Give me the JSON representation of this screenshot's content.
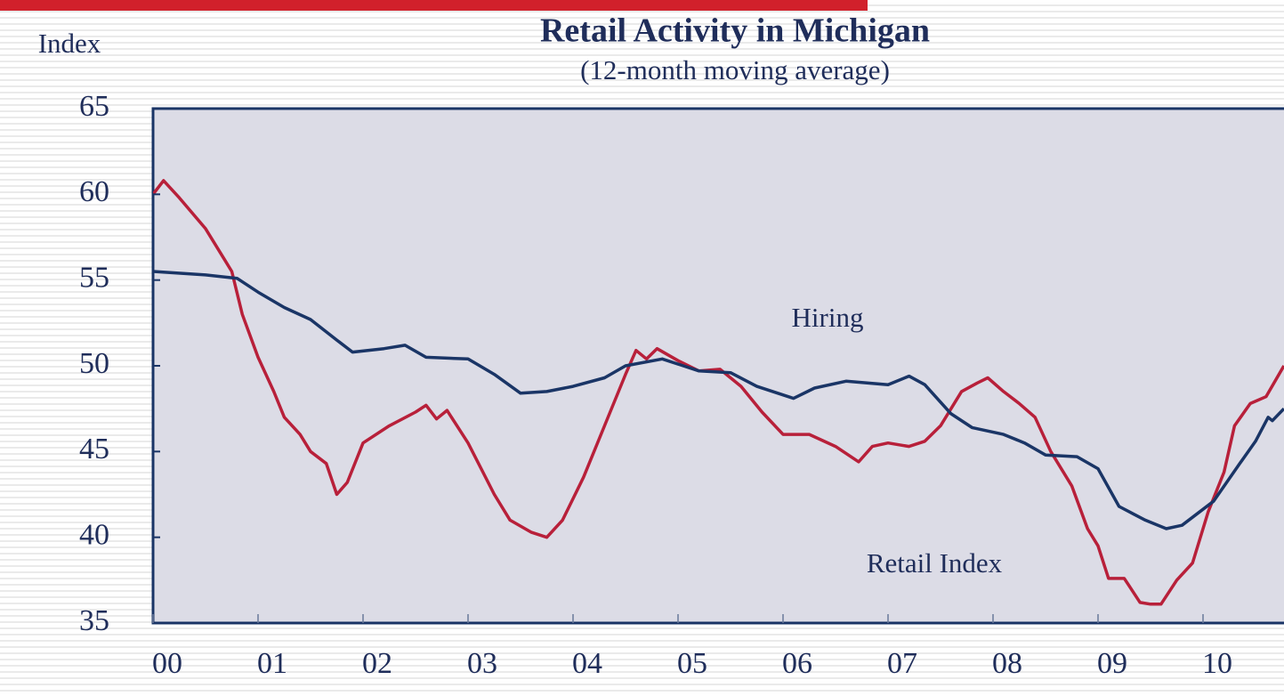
{
  "chart_data": {
    "type": "line",
    "title": "Retail Activity in Michigan",
    "subtitle": "(12-month moving average)",
    "y_label": "Index",
    "ylim": [
      35,
      65
    ],
    "yticks": [
      35,
      40,
      45,
      50,
      55,
      60,
      65
    ],
    "xlim": [
      2000,
      2010.77
    ],
    "xticks": [
      {
        "value": 2000,
        "label": "00"
      },
      {
        "value": 2001,
        "label": "01"
      },
      {
        "value": 2002,
        "label": "02"
      },
      {
        "value": 2003,
        "label": "03"
      },
      {
        "value": 2004,
        "label": "04"
      },
      {
        "value": 2005,
        "label": "05"
      },
      {
        "value": 2006,
        "label": "06"
      },
      {
        "value": 2007,
        "label": "07"
      },
      {
        "value": 2008,
        "label": "08"
      },
      {
        "value": 2009,
        "label": "09"
      },
      {
        "value": 2010,
        "label": "10"
      }
    ],
    "annotations": [
      "Hiring",
      "Retail Index"
    ],
    "series": [
      {
        "name": "Retail Index",
        "color": "#b8203a",
        "x": [
          2000.0,
          2000.1,
          2000.25,
          2000.5,
          2000.75,
          2000.85,
          2001.0,
          2001.15,
          2001.25,
          2001.4,
          2001.5,
          2001.65,
          2001.75,
          2001.85,
          2002.0,
          2002.25,
          2002.5,
          2002.6,
          2002.7,
          2002.8,
          2003.0,
          2003.25,
          2003.4,
          2003.6,
          2003.75,
          2003.9,
          2004.1,
          2004.3,
          2004.5,
          2004.6,
          2004.7,
          2004.8,
          2005.0,
          2005.2,
          2005.4,
          2005.6,
          2005.8,
          2006.0,
          2006.25,
          2006.5,
          2006.72,
          2006.85,
          2007.0,
          2007.2,
          2007.35,
          2007.5,
          2007.7,
          2007.85,
          2007.95,
          2008.1,
          2008.25,
          2008.4,
          2008.55,
          2008.75,
          2008.9,
          2009.0,
          2009.1,
          2009.25,
          2009.4,
          2009.5,
          2009.6,
          2009.75,
          2009.9,
          2010.05,
          2010.2,
          2010.3,
          2010.45,
          2010.6,
          2010.77
        ],
        "values": [
          60,
          60.8,
          59.8,
          58,
          55.5,
          53,
          50.5,
          48.5,
          47,
          46,
          45,
          44.3,
          42.5,
          43.2,
          45.5,
          46.5,
          47.3,
          47.7,
          46.9,
          47.4,
          45.5,
          42.5,
          41,
          40.3,
          40,
          41,
          43.5,
          46.5,
          49.5,
          50.9,
          50.4,
          51,
          50.3,
          49.7,
          49.8,
          48.8,
          47.3,
          46,
          46,
          45.3,
          44.4,
          45.3,
          45.5,
          45.3,
          45.6,
          46.5,
          48.5,
          49,
          49.3,
          48.5,
          47.8,
          47,
          45,
          43,
          40.5,
          39.5,
          37.6,
          37.6,
          36.2,
          36.1,
          36.1,
          37.5,
          38.5,
          41.5,
          43.8,
          46.5,
          47.8,
          48.2,
          50
        ]
      },
      {
        "name": "Hiring",
        "color": "#1a3566",
        "x": [
          2000.0,
          2000.5,
          2000.8,
          2001.0,
          2001.25,
          2001.5,
          2001.75,
          2001.9,
          2002.2,
          2002.4,
          2002.6,
          2003.0,
          2003.25,
          2003.5,
          2003.75,
          2004.0,
          2004.3,
          2004.5,
          2004.85,
          2005.2,
          2005.5,
          2005.75,
          2006.1,
          2006.3,
          2006.6,
          2007.0,
          2007.2,
          2007.35,
          2007.6,
          2007.8,
          2008.1,
          2008.3,
          2008.5,
          2008.8,
          2009.0,
          2009.2,
          2009.45,
          2009.65,
          2009.8,
          2010.1,
          2010.35,
          2010.5,
          2010.62,
          2010.66,
          2010.77
        ],
        "values": [
          55.5,
          55.3,
          55.1,
          54.3,
          53.4,
          52.7,
          51.5,
          50.8,
          51,
          51.2,
          50.5,
          50.4,
          49.5,
          48.4,
          48.5,
          48.8,
          49.3,
          50,
          50.4,
          49.7,
          49.6,
          48.8,
          48.1,
          48.7,
          49.1,
          48.9,
          49.4,
          48.9,
          47.2,
          46.4,
          46,
          45.5,
          44.8,
          44.7,
          44,
          41.8,
          41,
          40.5,
          40.7,
          42.1,
          44.3,
          45.6,
          47,
          46.8,
          47.5
        ]
      }
    ]
  }
}
